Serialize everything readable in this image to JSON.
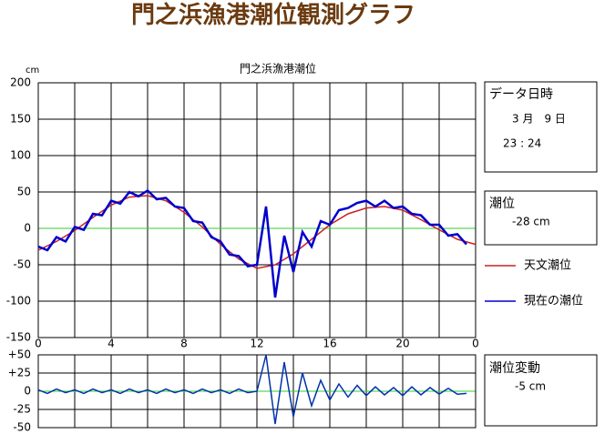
{
  "title": "門之浜漁港潮位観測グラフ",
  "chart_data": [
    {
      "type": "line",
      "title": "門之浜漁港潮位",
      "y_unit": "cm",
      "xlim": [
        0,
        24
      ],
      "xticks": [
        0,
        4,
        8,
        12,
        16,
        20,
        {
          "value": 24,
          "label": "0"
        }
      ],
      "xminor_ticks": [
        2,
        6,
        10,
        14,
        18,
        22
      ],
      "ylim": [
        -150,
        200
      ],
      "yticks": [
        -150,
        -100,
        -50,
        0,
        50,
        100,
        150,
        200
      ],
      "grid": true,
      "zero_line_color": "#33cc33",
      "series": [
        {
          "name": "天文潮位",
          "color": "#cc2222",
          "x": [
            0,
            1,
            2,
            3,
            4,
            5,
            6,
            7,
            8,
            9,
            10,
            11,
            12,
            13,
            14,
            15,
            16,
            17,
            18,
            19,
            20,
            21,
            22,
            23,
            24
          ],
          "values": [
            -30,
            -18,
            -3,
            15,
            32,
            43,
            45,
            38,
            22,
            2,
            -22,
            -42,
            -55,
            -50,
            -35,
            -15,
            5,
            20,
            28,
            30,
            25,
            12,
            -2,
            -15,
            -22
          ]
        },
        {
          "name": "現在の潮位",
          "color": "#0000cc",
          "x": [
            0,
            0.5,
            1,
            1.5,
            2,
            2.5,
            3,
            3.5,
            4,
            4.5,
            5,
            5.5,
            6,
            6.5,
            7,
            7.5,
            8,
            8.5,
            9,
            9.5,
            10,
            10.5,
            11,
            11.5,
            12,
            12.5,
            13,
            13.5,
            14,
            14.5,
            15,
            15.5,
            16,
            16.5,
            17,
            17.5,
            18,
            18.5,
            19,
            19.5,
            20,
            20.5,
            21,
            21.5,
            22,
            22.5,
            23,
            23.5
          ],
          "values": [
            -25,
            -30,
            -12,
            -18,
            2,
            -2,
            20,
            18,
            38,
            34,
            50,
            44,
            52,
            40,
            42,
            30,
            28,
            10,
            8,
            -12,
            -18,
            -36,
            -38,
            -52,
            -50,
            30,
            -95,
            -10,
            -60,
            -5,
            -25,
            10,
            5,
            25,
            28,
            35,
            38,
            30,
            38,
            28,
            30,
            20,
            18,
            5,
            5,
            -10,
            -8,
            -22
          ]
        }
      ]
    },
    {
      "type": "line",
      "xlim": [
        0,
        24
      ],
      "xticks": [
        0,
        4,
        8,
        12,
        16,
        20,
        24
      ],
      "xminor_ticks": [
        2,
        6,
        10,
        14,
        18,
        22
      ],
      "ylim": [
        -50,
        50
      ],
      "yticks": [
        {
          "value": 50,
          "label": "+50"
        },
        {
          "value": 25,
          "label": "+25"
        },
        0,
        -25,
        -50
      ],
      "grid": true,
      "zero_line_color": "#33cc33",
      "series": [
        {
          "color": "#0033aa",
          "x": [
            0,
            0.5,
            1,
            1.5,
            2,
            2.5,
            3,
            3.5,
            4,
            4.5,
            5,
            5.5,
            6,
            6.5,
            7,
            7.5,
            8,
            8.5,
            9,
            9.5,
            10,
            10.5,
            11,
            11.5,
            12,
            12.5,
            13,
            13.5,
            14,
            14.5,
            15,
            15.5,
            16,
            16.5,
            17,
            17.5,
            18,
            18.5,
            19,
            19.5,
            20,
            20.5,
            21,
            21.5,
            22,
            22.5,
            23,
            23.5
          ],
          "values": [
            2,
            -3,
            3,
            -2,
            2,
            -3,
            3,
            -2,
            2,
            -3,
            3,
            -2,
            2,
            -3,
            3,
            -2,
            2,
            -3,
            3,
            -2,
            2,
            -3,
            3,
            -2,
            0,
            50,
            -45,
            40,
            -35,
            25,
            -20,
            15,
            -12,
            10,
            -8,
            8,
            -6,
            6,
            -5,
            5,
            -6,
            6,
            -5,
            5,
            -4,
            4,
            -4,
            -3
          ]
        }
      ]
    }
  ],
  "panel": {
    "date_label": "データ日時",
    "date": "3 月　9 日",
    "time": "23 : 24",
    "tide_label": "潮位",
    "tide": "-28 cm",
    "change_label": "潮位変動",
    "change": "-5 cm"
  }
}
